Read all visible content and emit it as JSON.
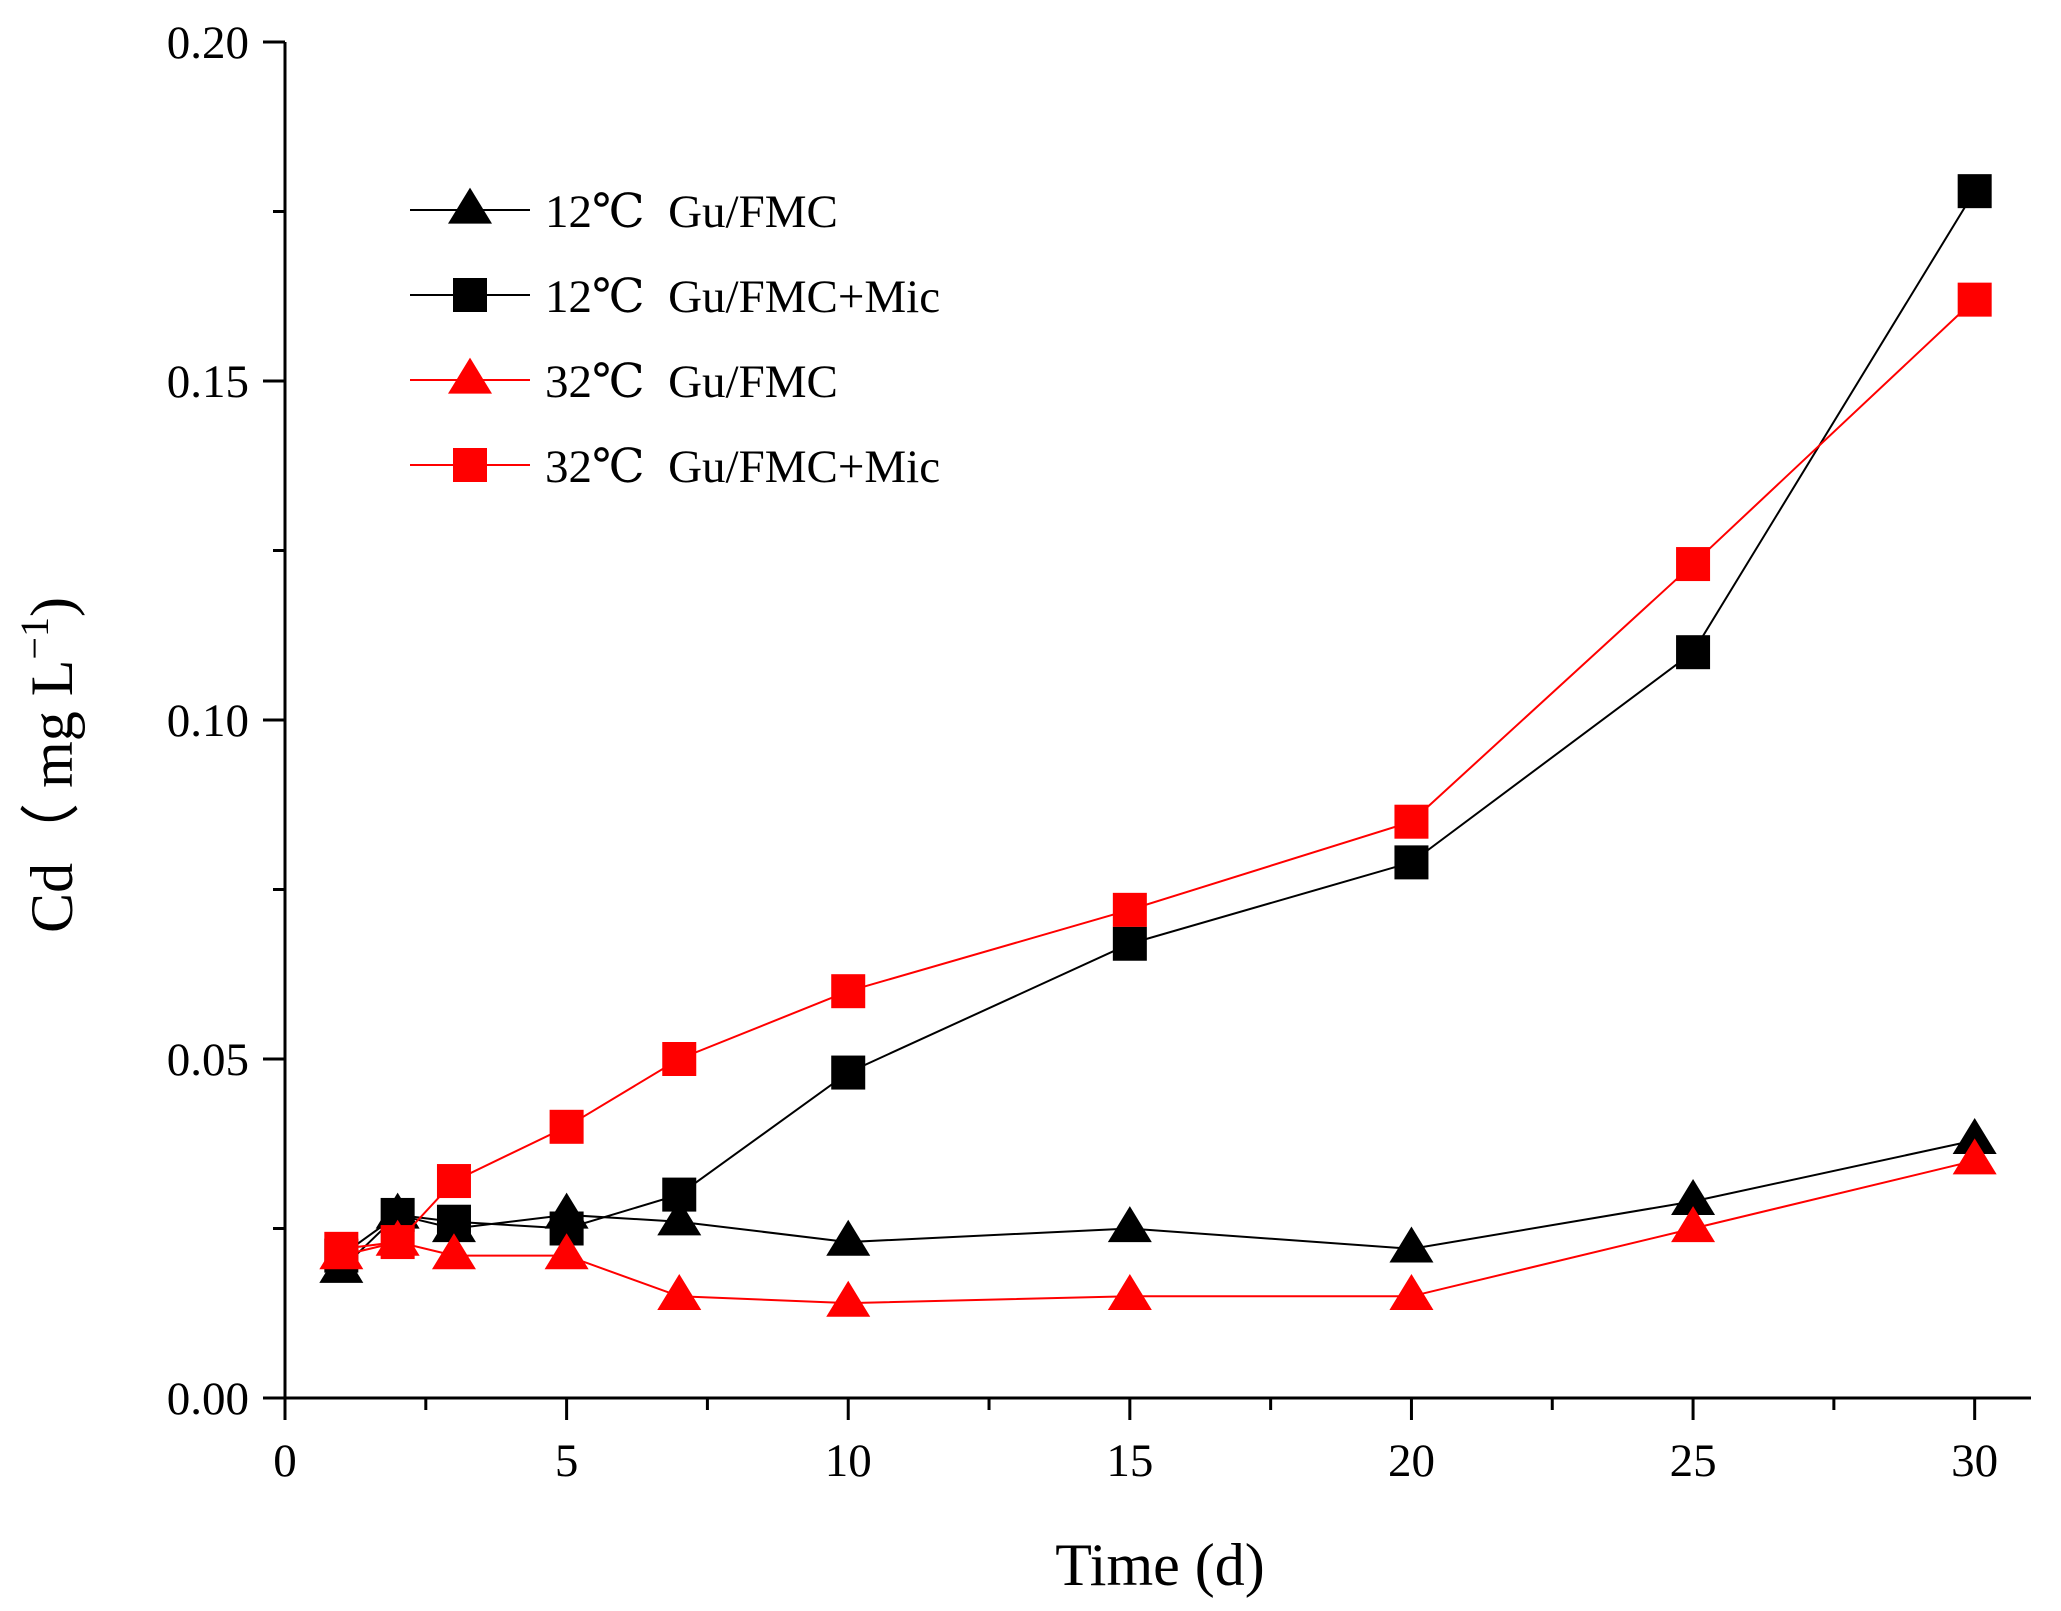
{
  "chart_data": {
    "type": "line",
    "title": "",
    "xlabel": "Time (d)",
    "ylabel": "Cd（ mg  L",
    "ylabel_superscript": "−1",
    "ylabel_close": ")",
    "xlim": [
      0,
      31
    ],
    "ylim": [
      0,
      0.2
    ],
    "xticks": [
      0,
      5,
      10,
      15,
      20,
      25,
      30
    ],
    "xtick_labels": [
      "0",
      "5",
      "10",
      "15",
      "20",
      "25",
      "30"
    ],
    "yticks": [
      0.0,
      0.05,
      0.1,
      0.15,
      0.2
    ],
    "ytick_labels": [
      "0.00",
      "0.05",
      "0.10",
      "0.15",
      "0.20"
    ],
    "legend_position": "top-left",
    "grid": false,
    "x": [
      1,
      2,
      3,
      5,
      7,
      10,
      15,
      20,
      25,
      30
    ],
    "series": [
      {
        "name": "12℃  Gu/FMC",
        "color": "#000000",
        "marker": "triangle",
        "values": [
          0.019,
          0.027,
          0.025,
          0.027,
          0.026,
          0.023,
          0.025,
          0.022,
          0.029,
          0.038
        ]
      },
      {
        "name": "12℃  Gu/FMC+Mic",
        "color": "#000000",
        "marker": "square",
        "values": [
          0.021,
          0.027,
          0.026,
          0.025,
          0.03,
          0.048,
          0.067,
          0.079,
          0.11,
          0.178
        ]
      },
      {
        "name": "32℃  Gu/FMC",
        "color": "#ff0000",
        "marker": "triangle",
        "values": [
          0.021,
          0.023,
          0.021,
          0.021,
          0.015,
          0.014,
          0.015,
          0.015,
          0.025,
          0.035
        ]
      },
      {
        "name": "32℃  Gu/FMC+Mic",
        "color": "#ff0000",
        "marker": "square",
        "values": [
          0.022,
          0.023,
          0.032,
          0.04,
          0.05,
          0.06,
          0.072,
          0.085,
          0.123,
          0.162
        ]
      }
    ]
  }
}
